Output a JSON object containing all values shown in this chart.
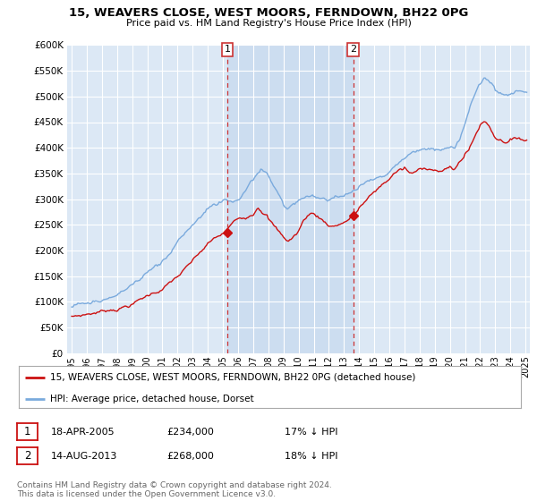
{
  "title": "15, WEAVERS CLOSE, WEST MOORS, FERNDOWN, BH22 0PG",
  "subtitle": "Price paid vs. HM Land Registry's House Price Index (HPI)",
  "background_color": "#ffffff",
  "plot_bg_color": "#dce8f5",
  "grid_color": "#ffffff",
  "hpi_color": "#7aaadd",
  "price_color": "#cc1111",
  "shade_color": "#ccddf0",
  "marker1_x": 2005.29,
  "marker1_y": 234000,
  "marker2_x": 2013.62,
  "marker2_y": 268000,
  "legend_line1": "15, WEAVERS CLOSE, WEST MOORS, FERNDOWN, BH22 0PG (detached house)",
  "legend_line2": "HPI: Average price, detached house, Dorset",
  "footer": "Contains HM Land Registry data © Crown copyright and database right 2024.\nThis data is licensed under the Open Government Licence v3.0.",
  "ylim": [
    0,
    600000
  ],
  "yticks": [
    0,
    50000,
    100000,
    150000,
    200000,
    250000,
    300000,
    350000,
    400000,
    450000,
    500000,
    550000,
    600000
  ],
  "xlim_left": 1994.7,
  "xlim_right": 2025.3,
  "xtick_years": [
    1995,
    1996,
    1997,
    1998,
    1999,
    2000,
    2001,
    2002,
    2003,
    2004,
    2005,
    2006,
    2007,
    2008,
    2009,
    2010,
    2011,
    2012,
    2013,
    2014,
    2015,
    2016,
    2017,
    2018,
    2019,
    2020,
    2021,
    2022,
    2023,
    2024,
    2025
  ]
}
